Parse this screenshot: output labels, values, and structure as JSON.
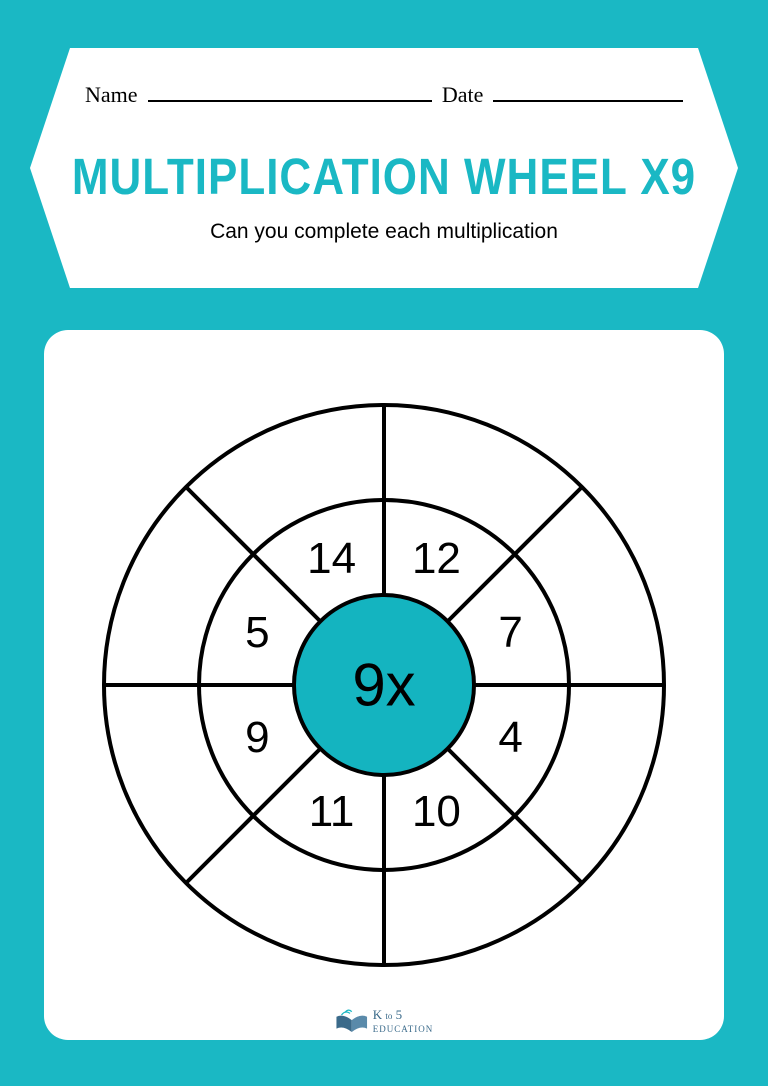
{
  "header": {
    "name_label": "Name",
    "date_label": "Date",
    "title": "MULTIPLICATION WHEEL X9",
    "subtitle": "Can you complete each multiplication"
  },
  "wheel": {
    "center_label": "9x",
    "center_fill": "#14b4c0",
    "stroke_color": "#000000",
    "stroke_width": 4,
    "outer_radius": 280,
    "middle_radius": 185,
    "inner_radius": 90,
    "segments": 8,
    "numbers": [
      {
        "value": "12",
        "angle": 67.5
      },
      {
        "value": "7",
        "angle": 22.5
      },
      {
        "value": "4",
        "angle": -22.5
      },
      {
        "value": "10",
        "angle": -67.5
      },
      {
        "value": "11",
        "angle": -112.5
      },
      {
        "value": "9",
        "angle": -157.5
      },
      {
        "value": "5",
        "angle": 157.5
      },
      {
        "value": "14",
        "angle": 112.5
      }
    ],
    "number_radius": 137
  },
  "colors": {
    "background": "#1ab8c4",
    "panel": "#ffffff",
    "accent": "#1ab8c4",
    "text": "#000000"
  },
  "logo": {
    "brand_main": "K",
    "brand_to": "to",
    "brand_num": "5",
    "brand_sub": "EDUCATION"
  }
}
